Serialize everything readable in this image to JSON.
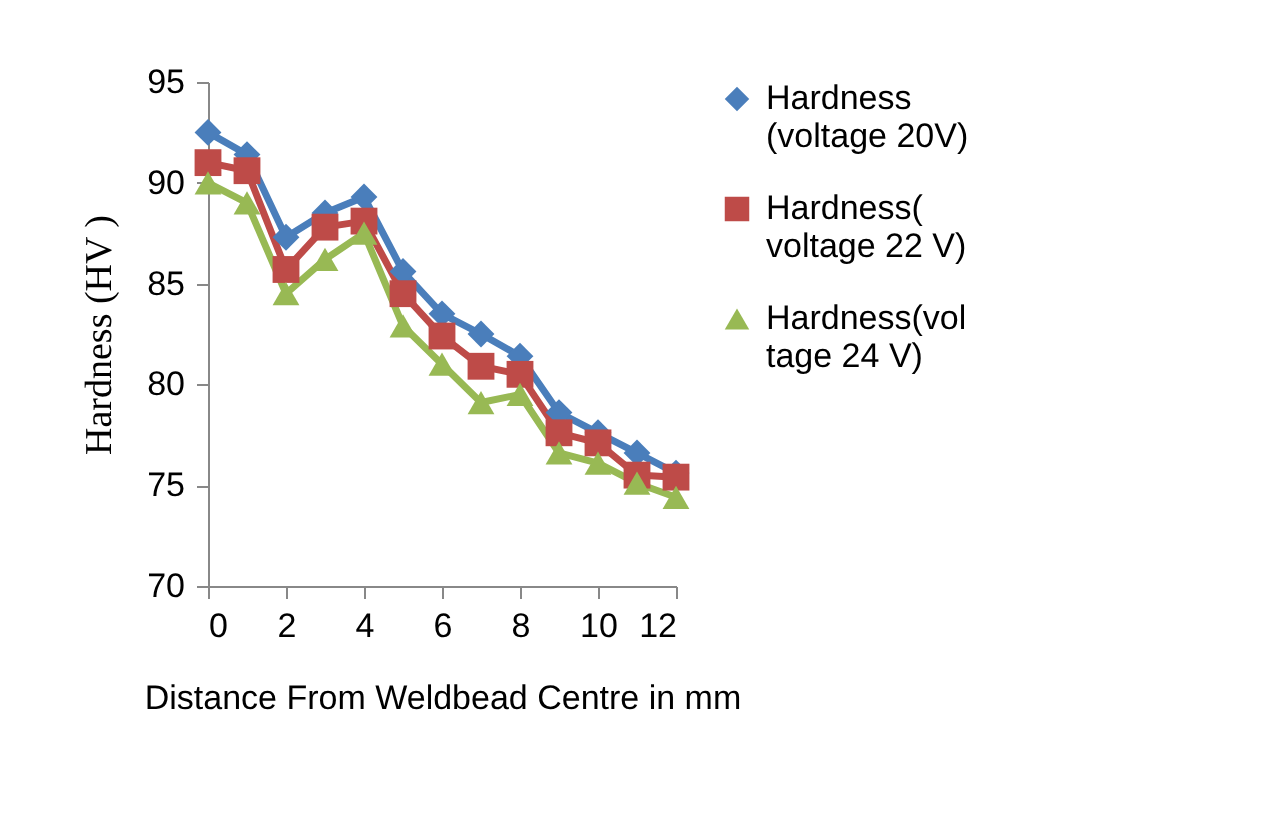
{
  "chart_data": {
    "type": "line",
    "xlabel": "Distance From Weldbead Centre in mm",
    "ylabel": "Hardness (HV )",
    "x": [
      0,
      1,
      2,
      3,
      4,
      5,
      6,
      7,
      8,
      9,
      10,
      11,
      12
    ],
    "series": [
      {
        "name": "Hardness (voltage 20V)",
        "color": "#4a7ebb",
        "marker": "diamond",
        "values": [
          92.5,
          91.4,
          87.3,
          88.5,
          89.3,
          85.6,
          83.5,
          82.5,
          81.4,
          78.6,
          77.6,
          76.6,
          75.6
        ]
      },
      {
        "name": "Hardness( voltage 22 V)",
        "color": "#be4b48",
        "marker": "square",
        "values": [
          91,
          90.6,
          85.7,
          87.8,
          88.1,
          84.5,
          82.4,
          80.9,
          80.5,
          77.6,
          77.1,
          75.5,
          75.4
        ]
      },
      {
        "name": "Hardness(voltage 24 V)",
        "color": "#98b954",
        "marker": "triangle",
        "values": [
          90,
          89,
          84.5,
          86.2,
          87.5,
          82.9,
          81,
          79.1,
          79.5,
          76.6,
          76.1,
          75.1,
          74.4
        ]
      }
    ],
    "xlim": [
      0,
      12
    ],
    "xticks": [
      0,
      2,
      4,
      6,
      8,
      10,
      12
    ],
    "ylim": [
      70,
      95
    ],
    "yticks": [
      70,
      75,
      80,
      85,
      90,
      95
    ],
    "grid": false,
    "legend": "right"
  }
}
